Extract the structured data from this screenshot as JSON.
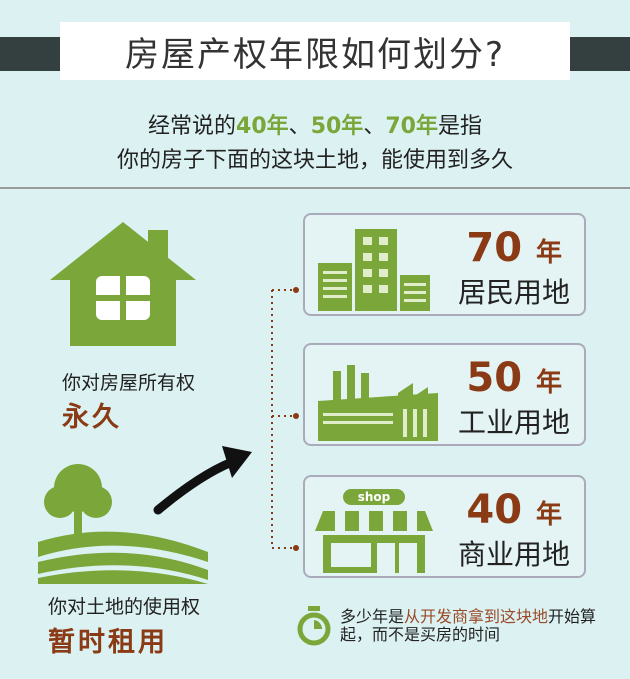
{
  "title": "房屋产权年限如何划分?",
  "subtitle": {
    "line1_pre": "经常说的",
    "y40": "40年",
    "sep1": "、",
    "y50": "50年",
    "sep2": "、",
    "y70": "70年",
    "line1_post": "是指",
    "line2": "你的房子下面的这块土地，能使用到多久"
  },
  "left": {
    "house_label": "你对房屋所有权",
    "house_term": "永久",
    "land_label": "你对土地的使用权",
    "land_term": "暂时租用"
  },
  "cards": [
    {
      "years": "70",
      "unit": "年",
      "type": "居民用地",
      "icon": "buildings-icon"
    },
    {
      "years": "50",
      "unit": "年",
      "type": "工业用地",
      "icon": "factory-icon"
    },
    {
      "years": "40",
      "unit": "年",
      "type": "商业用地",
      "icon": "shop-icon",
      "shop_sign": "shop"
    }
  ],
  "note": {
    "pre": "多少年是",
    "red": "从开发商拿到这块地",
    "post": "开始算起，而不是买房的时间",
    "icon": "stopwatch-icon"
  },
  "colors": {
    "green": "#7aa63a",
    "brown": "#8a3a14",
    "background": "#dcf1f1",
    "bar": "#343f3f"
  }
}
